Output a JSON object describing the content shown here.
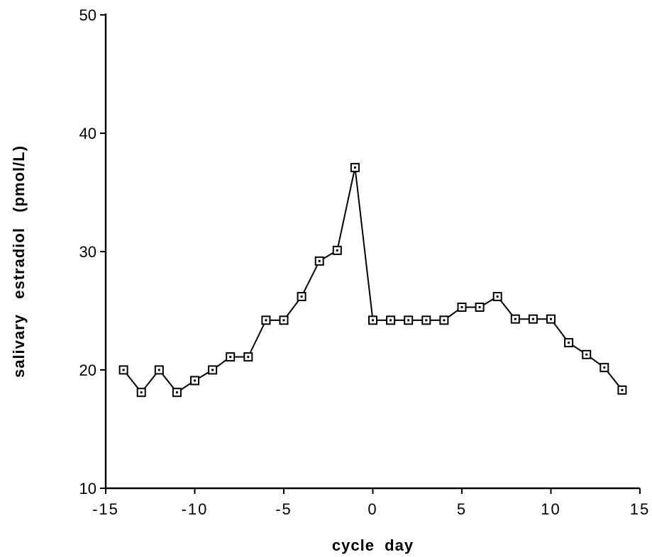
{
  "chart_data": {
    "type": "line",
    "title": "",
    "xlabel": "cycle  day",
    "ylabel": "salivary   estradiol   (pmol/L)",
    "xlim": [
      -15,
      15
    ],
    "ylim": [
      10,
      50
    ],
    "xticks": [
      -15,
      -10,
      -5,
      0,
      5,
      10,
      15
    ],
    "xtick_labels": [
      "-15",
      "-10",
      "-5",
      "0",
      "5",
      "10",
      "15"
    ],
    "yticks": [
      10,
      20,
      30,
      40,
      50
    ],
    "ytick_labels": [
      "10",
      "20",
      "30",
      "40",
      "50"
    ],
    "grid": false,
    "legend": "none",
    "marker": "square-with-center-dot",
    "line_color": "#000000",
    "series": [
      {
        "x": [
          -14,
          -13,
          -12,
          -11,
          -10,
          -9,
          -8,
          -7,
          -6,
          -5,
          -4,
          -3,
          -2,
          -1,
          0,
          1,
          2,
          3,
          4,
          5,
          6,
          7,
          8,
          9,
          10,
          11,
          12,
          13,
          14
        ],
        "y": [
          20,
          18.1,
          20,
          18.1,
          19.1,
          20,
          21.1,
          21.1,
          24.2,
          24.2,
          26.2,
          29.2,
          30.1,
          37.1,
          24.2,
          24.2,
          24.2,
          24.2,
          24.2,
          25.3,
          25.3,
          26.2,
          24.3,
          24.3,
          24.3,
          22.3,
          21.3,
          20.2,
          18.3
        ]
      }
    ]
  }
}
